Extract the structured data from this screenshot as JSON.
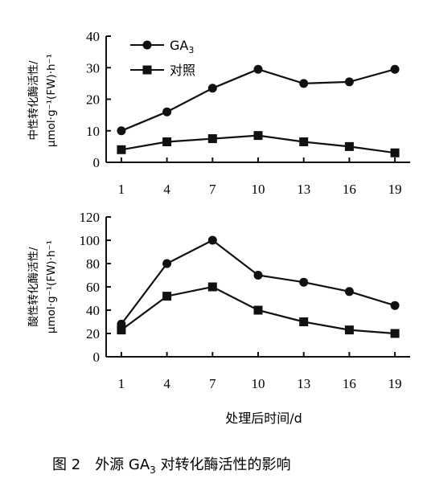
{
  "figure": {
    "caption_prefix": "图 2",
    "caption_before": "外源 GA",
    "caption_sub": "3",
    "caption_after": " 对转化酶活性的影响"
  },
  "chart_data": [
    {
      "type": "line",
      "ylabel_line1": "中性转化酶活性/",
      "ylabel_line2": "μmol·g⁻¹(FW)·h⁻¹",
      "xlabel": "",
      "categories": [
        "1",
        "4",
        "7",
        "10",
        "13",
        "16",
        "19"
      ],
      "x": [
        1,
        4,
        7,
        10,
        13,
        16,
        19
      ],
      "xlim": [
        0,
        20
      ],
      "ylim": [
        0,
        40
      ],
      "yticks": [
        0,
        10,
        20,
        30,
        40
      ],
      "legend_position": "top-left",
      "grid": false,
      "series": [
        {
          "name": "GA3",
          "marker": "circle",
          "values": [
            10,
            16,
            23.5,
            29.5,
            25,
            25.5,
            29.5
          ]
        },
        {
          "name": "对照",
          "marker": "square",
          "values": [
            4,
            6.5,
            7.5,
            8.5,
            6.5,
            5,
            3
          ]
        }
      ]
    },
    {
      "type": "line",
      "ylabel_line1": "酸性转化酶活性/",
      "ylabel_line2": "μmol·g⁻¹(FW)·h⁻¹",
      "xlabel": "处理后时间/d",
      "categories": [
        "1",
        "4",
        "7",
        "10",
        "13",
        "16",
        "19"
      ],
      "x": [
        1,
        4,
        7,
        10,
        13,
        16,
        19
      ],
      "xlim": [
        0,
        20
      ],
      "ylim": [
        0,
        120
      ],
      "yticks": [
        0,
        20,
        40,
        60,
        80,
        100,
        120
      ],
      "grid": false,
      "series": [
        {
          "name": "GA3",
          "marker": "circle",
          "values": [
            28,
            80,
            100,
            70,
            64,
            56,
            44
          ]
        },
        {
          "name": "对照",
          "marker": "square",
          "values": [
            23,
            52,
            60,
            40,
            30,
            23,
            20
          ]
        }
      ]
    }
  ]
}
